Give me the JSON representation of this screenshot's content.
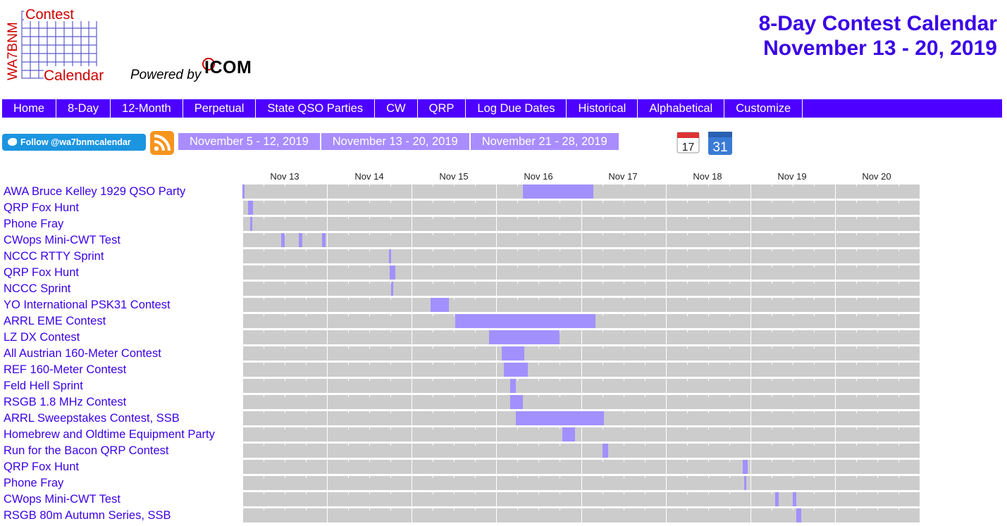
{
  "title": {
    "line1": "8-Day Contest Calendar",
    "line2": "November 13 - 20, 2019"
  },
  "logo": {
    "side_text": "WA7BNM",
    "contest": "Contest",
    "calendar": "Calendar",
    "powered": "Powered by",
    "icom": "ICOM"
  },
  "nav": [
    "Home",
    "8-Day",
    "12-Month",
    "Perpetual",
    "State QSO Parties",
    "CW",
    "QRP",
    "Log Due Dates",
    "Historical",
    "Alphabetical",
    "Customize"
  ],
  "toolbar": {
    "follow": "Follow @wa7bnmcalendar",
    "weeks": [
      "November 5 - 12, 2019",
      "November 13 - 20, 2019",
      "November 21 - 28, 2019"
    ],
    "cal_day": "17",
    "gcal_day": "31"
  },
  "days": [
    "Nov 13",
    "Nov 14",
    "Nov 15",
    "Nov 16",
    "Nov 17",
    "Nov 18",
    "Nov 19",
    "Nov 20"
  ],
  "contests": [
    {
      "name": "AWA Bruce Kelley 1929 QSO Party",
      "segments": [
        [
          0,
          0.1
        ],
        [
          79.5,
          99.5
        ]
      ]
    },
    {
      "name": "QRP Fox Hunt",
      "segments": [
        [
          1.5,
          3
        ]
      ]
    },
    {
      "name": "Phone Fray",
      "segments": [
        [
          2.2,
          2.7
        ]
      ]
    },
    {
      "name": "CWops Mini-CWT Test",
      "segments": [
        [
          11,
          12
        ],
        [
          16,
          17
        ],
        [
          22.5,
          23.5
        ]
      ]
    },
    {
      "name": "NCCC RTTY Sprint",
      "segments": [
        [
          41.5,
          42
        ]
      ]
    },
    {
      "name": "QRP Fox Hunt",
      "segments": [
        [
          41.8,
          43.3
        ]
      ]
    },
    {
      "name": "NCCC Sprint",
      "segments": [
        [
          42.2,
          42.7
        ]
      ]
    },
    {
      "name": "YO International PSK31 Contest",
      "segments": [
        [
          53.3,
          58.6
        ]
      ]
    },
    {
      "name": "ARRL EME Contest",
      "segments": [
        [
          60.3,
          100
        ]
      ]
    },
    {
      "name": "LZ DX Contest",
      "segments": [
        [
          70,
          90
        ]
      ]
    },
    {
      "name": "All Austrian 160-Meter Contest",
      "segments": [
        [
          73.5,
          80
        ]
      ]
    },
    {
      "name": "REF 160-Meter Contest",
      "segments": [
        [
          74.2,
          81
        ]
      ]
    },
    {
      "name": "Feld Hell Sprint",
      "segments": [
        [
          76,
          77.5
        ]
      ]
    },
    {
      "name": "RSGB 1.8 MHz Contest",
      "segments": [
        [
          76,
          79.5
        ]
      ]
    },
    {
      "name": "ARRL Sweepstakes Contest, SSB",
      "segments": [
        [
          77.5,
          102.5
        ]
      ]
    },
    {
      "name": "Homebrew and Oldtime Equipment Party",
      "segments": [
        [
          90.8,
          94.3
        ]
      ]
    },
    {
      "name": "Run for the Bacon QRP Contest",
      "segments": [
        [
          102,
          103.7
        ]
      ]
    },
    {
      "name": "QRP Fox Hunt",
      "segments": [
        [
          141.9,
          143.3
        ]
      ]
    },
    {
      "name": "Phone Fray",
      "segments": [
        [
          142.2,
          142.7
        ]
      ]
    },
    {
      "name": "CWops Mini-CWT Test",
      "segments": [
        [
          151,
          152
        ],
        [
          156,
          157
        ]
      ]
    },
    {
      "name": "RSGB 80m Autumn Series, SSB",
      "segments": [
        [
          157,
          158.5
        ]
      ]
    }
  ],
  "colors": {
    "accent": "#3a00e6",
    "nav_bg": "#4d00ff",
    "track": "#cccccc",
    "segment": "#a390ff"
  }
}
